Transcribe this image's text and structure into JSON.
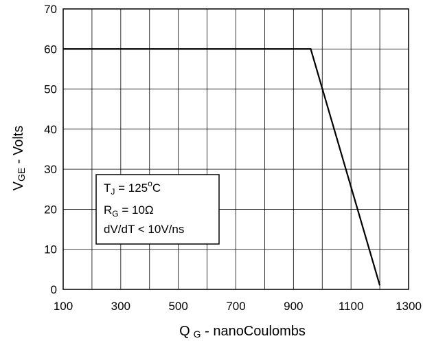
{
  "colors": {
    "background": "#ffffff",
    "grid": "#000000",
    "line": "#000000"
  },
  "chart_data": {
    "type": "line",
    "title": "",
    "xlabel": {
      "main": "Q",
      "sub": "G",
      "rest": " - nanoCoulombs"
    },
    "ylabel": {
      "main": "V",
      "sub": "GE",
      "rest": " - Volts"
    },
    "xlim": [
      100,
      1300
    ],
    "ylim": [
      0,
      70
    ],
    "x_ticks": [
      100,
      300,
      500,
      700,
      900,
      1100,
      1300
    ],
    "x_grid_step": 100,
    "y_ticks": [
      0,
      10,
      20,
      30,
      40,
      50,
      60,
      70
    ],
    "grid": true,
    "legend": "none",
    "series": [
      {
        "x": [
          100,
          960,
          1200
        ],
        "y": [
          60,
          60,
          1
        ]
      }
    ],
    "annotation": {
      "line1": {
        "main": "T",
        "sub": "J",
        "rest": " = 125",
        "sup": "o",
        "tail": "C"
      },
      "line2": {
        "main": "R",
        "sub": "G",
        "rest": " = 10Ω"
      },
      "line3": {
        "text": "dV/dT < 10V/ns"
      }
    }
  }
}
